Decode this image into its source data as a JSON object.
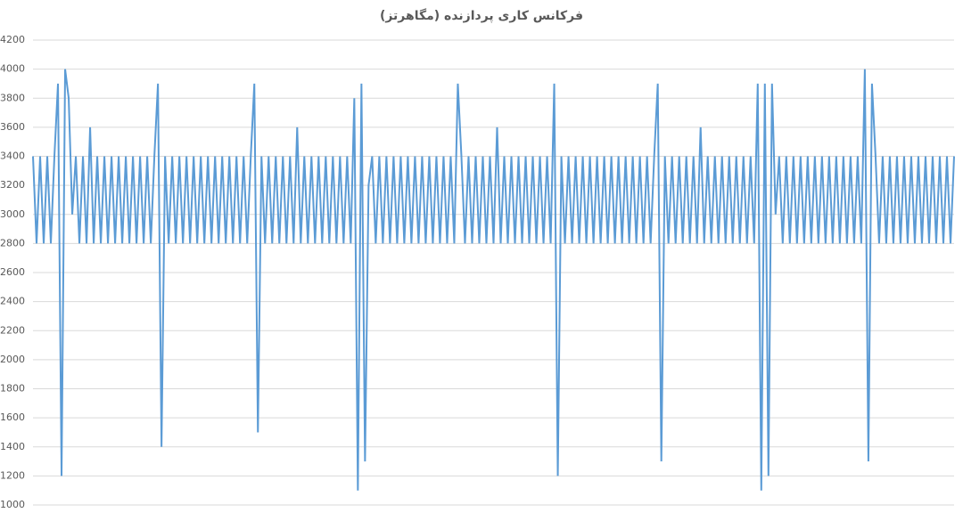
{
  "chart_data": {
    "type": "line",
    "title": "فرکانس کاری پردازنده (مگاهرتز)",
    "color": "#5b9bd5",
    "grid": true,
    "ylim": [
      1000,
      4200
    ],
    "yticks": [
      1000,
      1200,
      1400,
      1600,
      1800,
      2000,
      2200,
      2400,
      2600,
      2800,
      3000,
      3200,
      3400,
      3600,
      3800,
      4000,
      4200
    ],
    "values": [
      3400,
      2800,
      3400,
      2800,
      3400,
      2800,
      3400,
      3900,
      1200,
      4000,
      3800,
      3000,
      3400,
      2800,
      3400,
      2800,
      3600,
      2800,
      3400,
      2800,
      3400,
      2800,
      3400,
      2800,
      3400,
      2800,
      3400,
      2800,
      3400,
      2800,
      3400,
      2800,
      3400,
      2800,
      3400,
      3900,
      1400,
      3400,
      2800,
      3400,
      2800,
      3400,
      2800,
      3400,
      2800,
      3400,
      2800,
      3400,
      2800,
      3400,
      2800,
      3400,
      2800,
      3400,
      2800,
      3400,
      2800,
      3400,
      2800,
      3400,
      2800,
      3400,
      3900,
      1500,
      3400,
      2800,
      3400,
      2800,
      3400,
      2800,
      3400,
      2800,
      3400,
      2800,
      3600,
      2800,
      3400,
      2800,
      3400,
      2800,
      3400,
      2800,
      3400,
      2800,
      3400,
      2800,
      3400,
      2800,
      3400,
      2800,
      3800,
      1100,
      3900,
      1300,
      3200,
      3400,
      2800,
      3400,
      2800,
      3400,
      2800,
      3400,
      2800,
      3400,
      2800,
      3400,
      2800,
      3400,
      2800,
      3400,
      2800,
      3400,
      2800,
      3400,
      2800,
      3400,
      2800,
      3400,
      2800,
      3900,
      3400,
      2800,
      3400,
      2800,
      3400,
      2800,
      3400,
      2800,
      3400,
      2800,
      3600,
      2800,
      3400,
      2800,
      3400,
      2800,
      3400,
      2800,
      3400,
      2800,
      3400,
      2800,
      3400,
      2800,
      3400,
      2800,
      3900,
      1200,
      3400,
      2800,
      3400,
      2800,
      3400,
      2800,
      3400,
      2800,
      3400,
      2800,
      3400,
      2800,
      3400,
      2800,
      3400,
      2800,
      3400,
      2800,
      3400,
      2800,
      3400,
      2800,
      3400,
      2800,
      3400,
      2800,
      3400,
      3900,
      1300,
      3400,
      2800,
      3400,
      2800,
      3400,
      2800,
      3400,
      2800,
      3400,
      2800,
      3600,
      2800,
      3400,
      2800,
      3400,
      2800,
      3400,
      2800,
      3400,
      2800,
      3400,
      2800,
      3400,
      2800,
      3400,
      2800,
      3900,
      1100,
      3900,
      1200,
      3900,
      3000,
      3400,
      2800,
      3400,
      2800,
      3400,
      2800,
      3400,
      2800,
      3400,
      2800,
      3400,
      2800,
      3400,
      2800,
      3400,
      2800,
      3400,
      2800,
      3400,
      2800,
      3400,
      2800,
      3400,
      2800,
      4000,
      1300,
      3900,
      3400,
      2800,
      3400,
      2800,
      3400,
      2800,
      3400,
      2800,
      3400,
      2800,
      3400,
      2800,
      3400,
      2800,
      3400,
      2800,
      3400,
      2800,
      3400,
      2800,
      3400,
      2800,
      3400
    ]
  }
}
